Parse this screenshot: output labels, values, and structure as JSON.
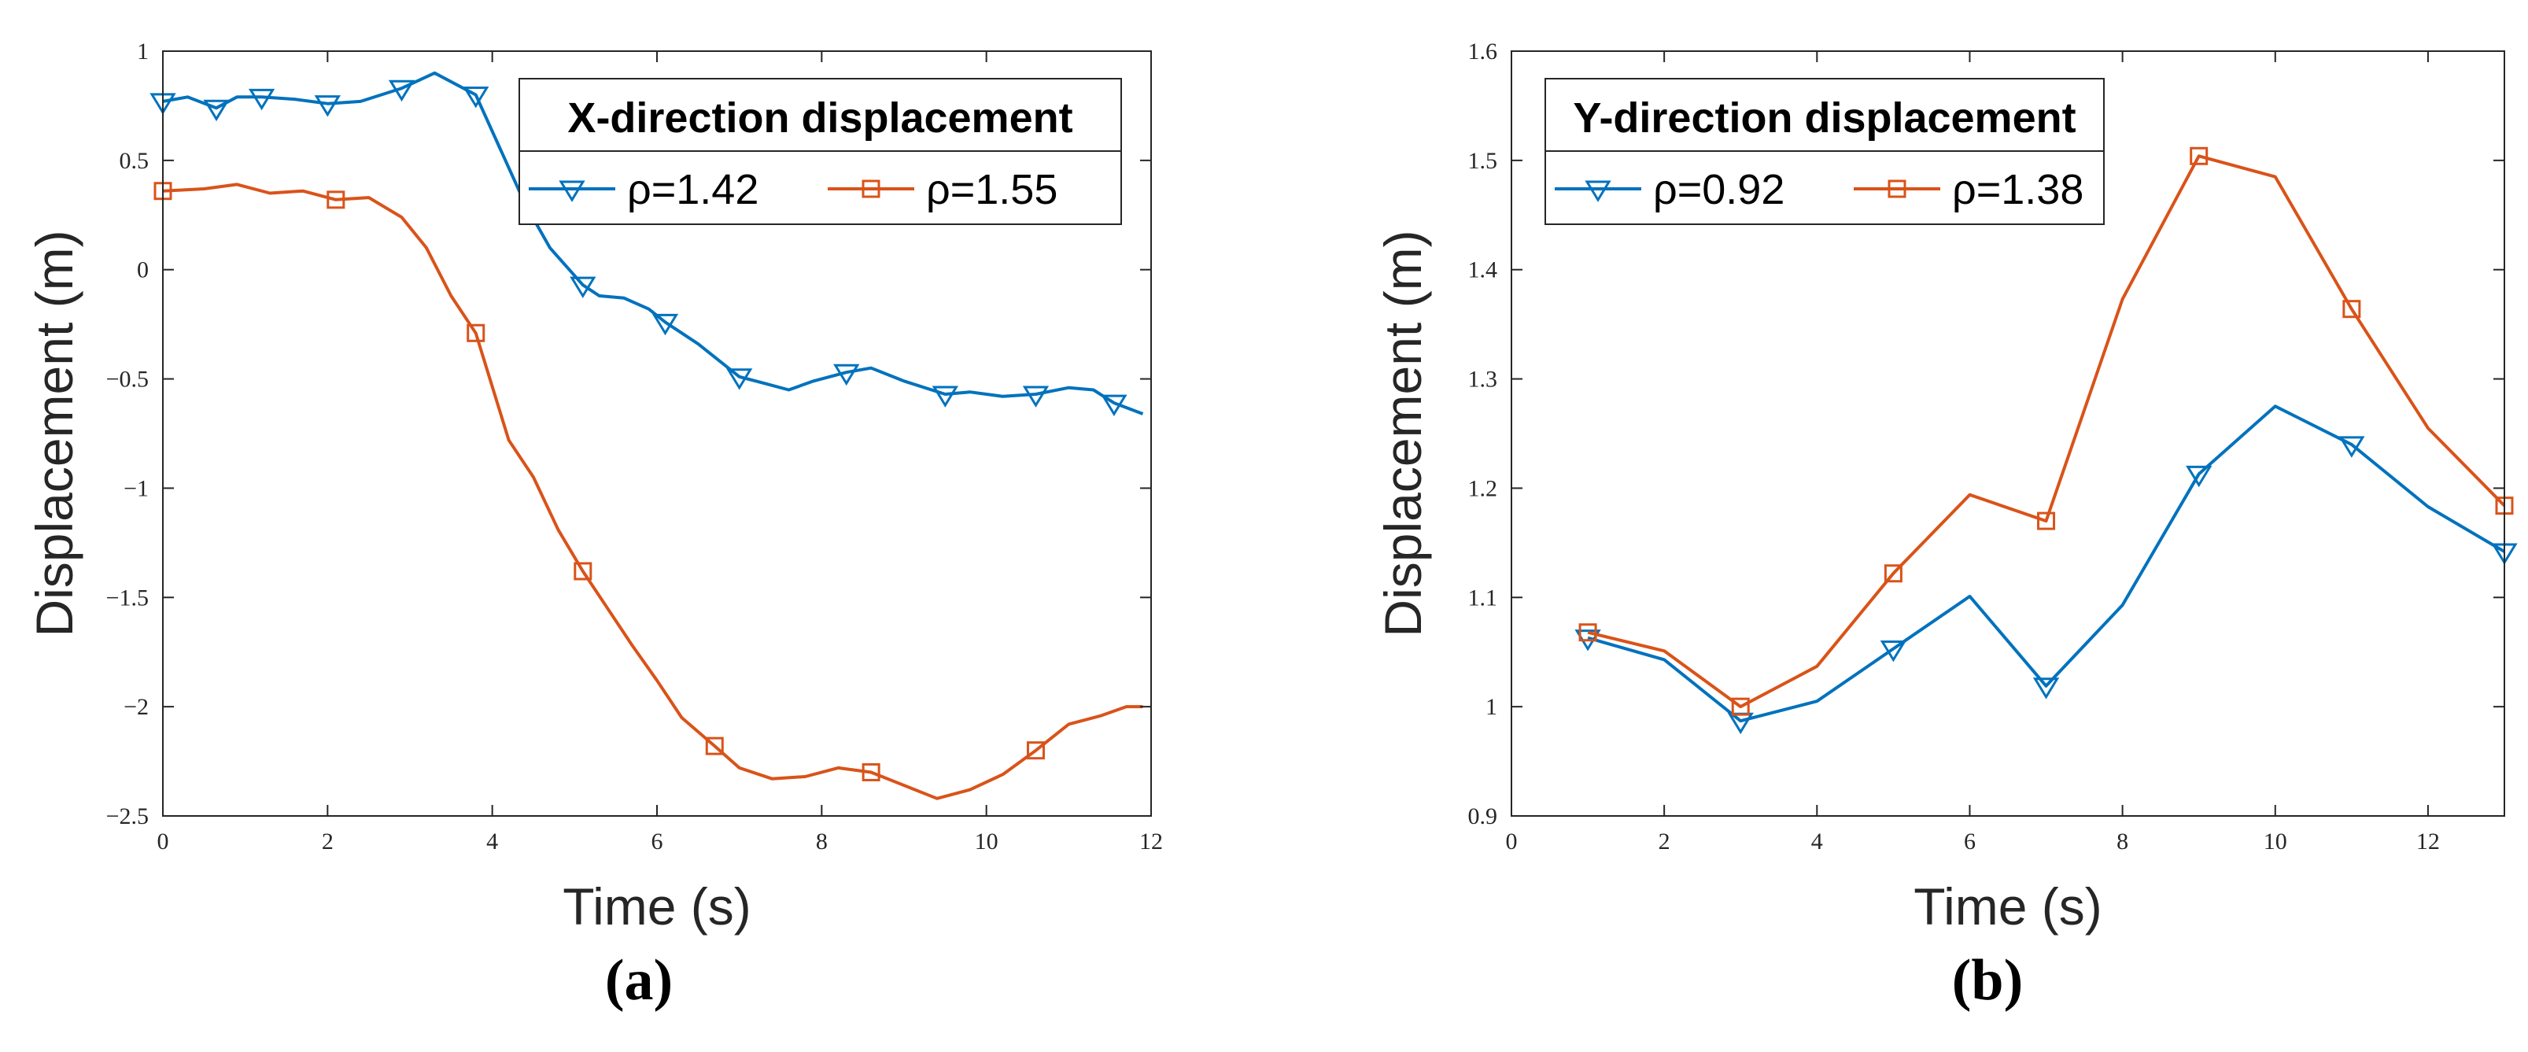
{
  "colors": {
    "blue": "#0072BD",
    "orange": "#D95319",
    "axis": "#262626"
  },
  "chart_data": [
    {
      "type": "line",
      "panel": "(a)",
      "legend_title": "X-direction displacement",
      "legend_position": "top-right",
      "xlabel": "Time (s)",
      "ylabel": "Displacement (m)",
      "xlim": [
        0,
        12
      ],
      "ylim": [
        -2.5,
        1
      ],
      "xticks": [
        0,
        2,
        4,
        6,
        8,
        10,
        12
      ],
      "xtick_labels": [
        "0",
        "2",
        "4",
        "6",
        "8",
        "10",
        "12"
      ],
      "yticks": [
        -2.5,
        -2,
        -1.5,
        -1,
        -0.5,
        0,
        0.5,
        1
      ],
      "ytick_labels": [
        "−2.5",
        "−2",
        "−1.5",
        "−1",
        "−0.5",
        "0",
        "0.5",
        "1"
      ],
      "grid": false,
      "series": [
        {
          "name": "ρ=1.42",
          "color": "#0072BD",
          "marker": "triangle-down",
          "x": [
            0,
            0.3,
            0.65,
            0.9,
            1.2,
            1.6,
            2.0,
            2.4,
            2.9,
            3.3,
            3.8,
            4.1,
            4.4,
            4.7,
            5.1,
            5.3,
            5.6,
            5.9,
            6.1,
            6.5,
            7.0,
            7.3,
            7.6,
            7.9,
            8.3,
            8.6,
            9.0,
            9.5,
            9.8,
            10.2,
            10.6,
            11.0,
            11.3,
            11.55,
            11.9
          ],
          "y": [
            0.77,
            0.79,
            0.74,
            0.79,
            0.79,
            0.78,
            0.76,
            0.77,
            0.83,
            0.9,
            0.8,
            0.55,
            0.3,
            0.1,
            -0.07,
            -0.12,
            -0.13,
            -0.18,
            -0.24,
            -0.34,
            -0.49,
            -0.52,
            -0.55,
            -0.51,
            -0.47,
            -0.45,
            -0.51,
            -0.57,
            -0.56,
            -0.58,
            -0.57,
            -0.54,
            -0.55,
            -0.61,
            -0.66
          ],
          "marker_x": [
            0,
            0.65,
            1.2,
            2.0,
            2.9,
            3.8,
            5.1,
            6.1,
            7.0,
            8.3,
            9.5,
            10.6,
            11.55
          ],
          "marker_y": [
            0.77,
            0.74,
            0.79,
            0.76,
            0.83,
            0.8,
            -0.07,
            -0.24,
            -0.49,
            -0.47,
            -0.57,
            -0.57,
            -0.61
          ]
        },
        {
          "name": "ρ=1.55",
          "color": "#D95319",
          "marker": "square",
          "x": [
            0,
            0.5,
            0.9,
            1.3,
            1.7,
            2.1,
            2.5,
            2.9,
            3.2,
            3.5,
            3.8,
            4.2,
            4.5,
            4.8,
            5.1,
            5.4,
            5.7,
            6.0,
            6.3,
            6.7,
            7.0,
            7.4,
            7.8,
            8.2,
            8.6,
            9.0,
            9.4,
            9.8,
            10.2,
            10.6,
            11.0,
            11.4,
            11.7,
            11.9
          ],
          "y": [
            0.36,
            0.37,
            0.39,
            0.35,
            0.36,
            0.32,
            0.33,
            0.24,
            0.1,
            -0.12,
            -0.29,
            -0.78,
            -0.95,
            -1.19,
            -1.38,
            -1.55,
            -1.72,
            -1.88,
            -2.05,
            -2.18,
            -2.28,
            -2.33,
            -2.32,
            -2.28,
            -2.3,
            -2.36,
            -2.42,
            -2.38,
            -2.31,
            -2.2,
            -2.08,
            -2.04,
            -2.0,
            -2.0
          ],
          "marker_x": [
            0,
            2.1,
            3.8,
            5.1,
            6.7,
            8.6,
            10.6
          ],
          "marker_y": [
            0.36,
            0.32,
            -0.29,
            -1.38,
            -2.18,
            -2.3,
            -2.2
          ]
        }
      ]
    },
    {
      "type": "line",
      "panel": "(b)",
      "legend_title": "Y-direction displacement",
      "legend_position": "top-left",
      "xlabel": "Time (s)",
      "ylabel": "Displacement (m)",
      "xlim": [
        0,
        13
      ],
      "ylim": [
        0.9,
        1.6
      ],
      "xticks": [
        0,
        2,
        4,
        6,
        8,
        10,
        12
      ],
      "xtick_labels": [
        "0",
        "2",
        "4",
        "6",
        "8",
        "10",
        "12"
      ],
      "yticks": [
        0.9,
        1.0,
        1.1,
        1.2,
        1.3,
        1.4,
        1.5,
        1.6
      ],
      "ytick_labels": [
        "0.9",
        "1",
        "1.1",
        "1.2",
        "1.3",
        "1.4",
        "1.5",
        "1.6"
      ],
      "grid": false,
      "series": [
        {
          "name": "ρ=0.92",
          "color": "#0072BD",
          "marker": "triangle-down",
          "x": [
            1,
            2,
            3,
            4,
            5,
            6,
            7,
            8,
            9,
            10,
            11,
            12,
            13
          ],
          "y": [
            1.063,
            1.043,
            0.987,
            1.005,
            1.053,
            1.101,
            1.019,
            1.093,
            1.213,
            1.275,
            1.24,
            1.183,
            1.142
          ],
          "marker_x": [
            1,
            3,
            5,
            7,
            9,
            11,
            13
          ],
          "marker_y": [
            1.063,
            0.987,
            1.053,
            1.019,
            1.213,
            1.24,
            1.142
          ]
        },
        {
          "name": "ρ=1.38",
          "color": "#D95319",
          "marker": "square",
          "x": [
            1,
            2,
            3,
            4,
            5,
            6,
            7,
            8,
            9,
            10,
            11,
            12,
            13
          ],
          "y": [
            1.068,
            1.051,
            1.0,
            1.037,
            1.122,
            1.194,
            1.17,
            1.373,
            1.504,
            1.485,
            1.364,
            1.255,
            1.184
          ],
          "marker_x": [
            1,
            3,
            5,
            7,
            9,
            11,
            13
          ],
          "marker_y": [
            1.068,
            1.0,
            1.122,
            1.17,
            1.504,
            1.364,
            1.184
          ]
        }
      ]
    }
  ]
}
